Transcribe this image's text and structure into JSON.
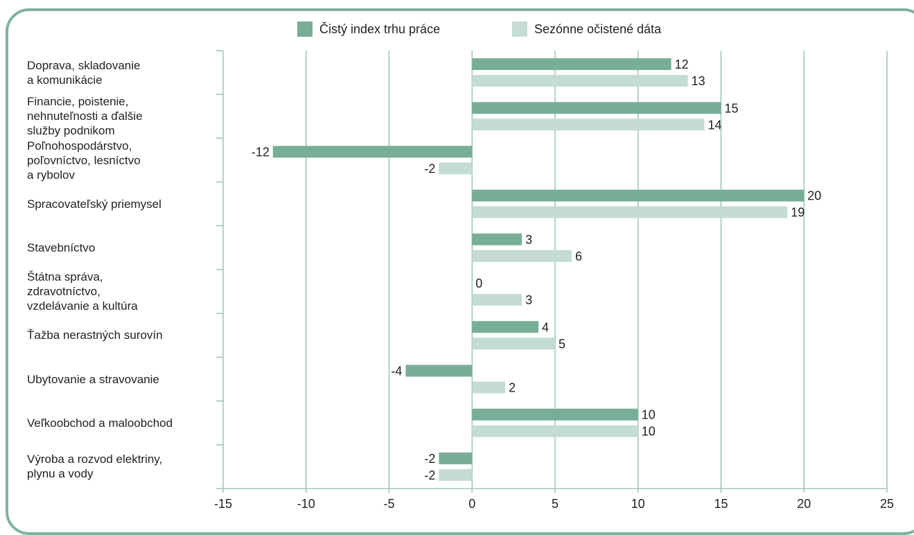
{
  "colors": {
    "index": "#78ae97",
    "seasonal": "#c4dcd2",
    "grid": "#8dbdaa",
    "frame": "#7fb1a0",
    "text": "#222222"
  },
  "legend": {
    "index": "Čistý index trhu práce",
    "seasonal": "Sezónne očistené dáta"
  },
  "chart_data": {
    "type": "bar",
    "orientation": "horizontal",
    "categories": [
      [
        "Doprava, skladovanie",
        "a komunikácie"
      ],
      [
        "Financie, poistenie,",
        "nehnuteľnosti a ďalšie",
        "služby podnikom"
      ],
      [
        "Poľnohospodárstvo,",
        "poľovníctvo, lesníctvo",
        "a rybolov"
      ],
      [
        "Spracovateľský priemysel"
      ],
      [
        "Stavebníctvo"
      ],
      [
        "Štátna správa,",
        "zdravotníctvo,",
        "vzdelávanie a kultúra"
      ],
      [
        "Ťažba nerastných surovín"
      ],
      [
        "Ubytovanie a stravovanie"
      ],
      [
        "Veľkoobchod a maloobchod"
      ],
      [
        "Výroba a rozvod elektriny,",
        "plynu a vody"
      ]
    ],
    "series": [
      {
        "name": "Čistý index trhu práce",
        "values": [
          12,
          15,
          -12,
          20,
          3,
          0,
          4,
          -4,
          10,
          -2
        ]
      },
      {
        "name": "Sezónne očistené dáta",
        "values": [
          13,
          14,
          -2,
          19,
          6,
          3,
          5,
          2,
          10,
          -2
        ]
      }
    ],
    "xlim": [
      -15,
      25
    ],
    "xticks": [
      -15,
      -10,
      -5,
      0,
      5,
      10,
      15,
      20,
      25
    ],
    "grid": true,
    "legend_position": "top-center"
  }
}
